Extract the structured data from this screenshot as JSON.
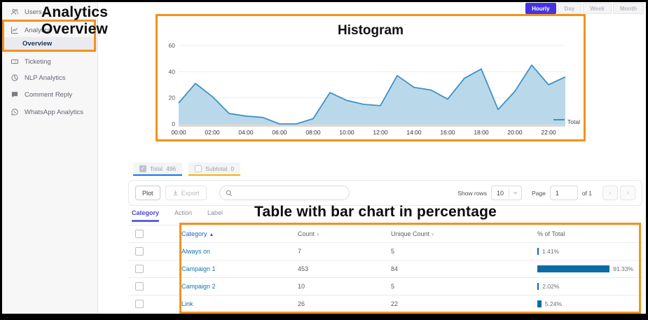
{
  "annotations": {
    "sidebar_note_line1": "Analytics",
    "sidebar_note_line2": "Overview",
    "table_note": "Table with bar chart in percentage",
    "box_color": "#f0931e"
  },
  "sidebar": {
    "items": [
      {
        "label": "Users",
        "icon": "users-icon"
      },
      {
        "label": "Analytics",
        "icon": "analytics-icon"
      },
      {
        "label": "Overview",
        "icon": null,
        "active": true
      },
      {
        "label": "Ticketing",
        "icon": "ticket-icon"
      },
      {
        "label": "NLP Analytics",
        "icon": "nlp-icon"
      },
      {
        "label": "Comment Reply",
        "icon": "comment-icon"
      },
      {
        "label": "WhatsApp Analytics",
        "icon": "whatsapp-icon"
      }
    ]
  },
  "time_range": {
    "options": [
      "Hourly",
      "Day",
      "Week",
      "Month"
    ],
    "selected": "Hourly",
    "selected_color": "#4533e3"
  },
  "chart_data": {
    "type": "area",
    "title": "Histogram",
    "x": [
      "00:00",
      "01:00",
      "02:00",
      "03:00",
      "04:00",
      "05:00",
      "06:00",
      "07:00",
      "08:00",
      "09:00",
      "10:00",
      "11:00",
      "12:00",
      "13:00",
      "14:00",
      "15:00",
      "16:00",
      "17:00",
      "18:00",
      "19:00",
      "20:00",
      "21:00",
      "22:00",
      "23:00"
    ],
    "series": [
      {
        "name": "Total",
        "values": [
          16,
          31,
          21,
          8,
          6,
          5,
          0,
          0,
          4,
          24,
          18,
          15,
          14,
          37,
          28,
          26,
          19,
          35,
          42,
          11,
          25,
          45,
          30,
          36
        ]
      }
    ],
    "ylim": [
      0,
      60
    ],
    "yticks": [
      0,
      20,
      40,
      60
    ],
    "xlabel": "",
    "ylabel": "",
    "grid": true,
    "legend_position": "right",
    "line_color": "#4191c5",
    "fill_color": "#b9d9ea",
    "legend": [
      {
        "label": "Total"
      }
    ]
  },
  "filters": {
    "chips": [
      {
        "label": "Total",
        "count": "496",
        "checked": true,
        "underline": "#1a73e8",
        "check_glyph": "✓"
      },
      {
        "label": "Subtotal",
        "count": "0",
        "checked": false,
        "underline": "#f5b400",
        "check_glyph": ""
      }
    ]
  },
  "toolbar": {
    "plot_label": "Plot",
    "export_label": "Export",
    "search_value": "",
    "search_placeholder": "",
    "show_rows_label": "Show rows",
    "rows_value": "10",
    "page_label": "Page",
    "page_value": "1",
    "of_label": "of 1",
    "prev_icon": "‹",
    "next_icon": "›"
  },
  "tabs": [
    {
      "label": "Category",
      "active": true
    },
    {
      "label": "Action",
      "active": false
    },
    {
      "label": "Label",
      "active": false
    }
  ],
  "table": {
    "columns": [
      "Category",
      "Count",
      "Unique Count",
      "% of Total"
    ],
    "sort_asc_icon": "▲",
    "sort_icon": "▾",
    "bar_color": "#0e6ba8",
    "rows": [
      {
        "category": "Always on",
        "count": "7",
        "unique": "5",
        "pct": 1.41,
        "pct_label": "1.41%"
      },
      {
        "category": "Campaign 1",
        "count": "453",
        "unique": "84",
        "pct": 91.33,
        "pct_label": "91.33%"
      },
      {
        "category": "Campaign 2",
        "count": "10",
        "unique": "5",
        "pct": 2.02,
        "pct_label": "2.02%"
      },
      {
        "category": "Link",
        "count": "26",
        "unique": "22",
        "pct": 5.24,
        "pct_label": "5.24%"
      }
    ]
  }
}
